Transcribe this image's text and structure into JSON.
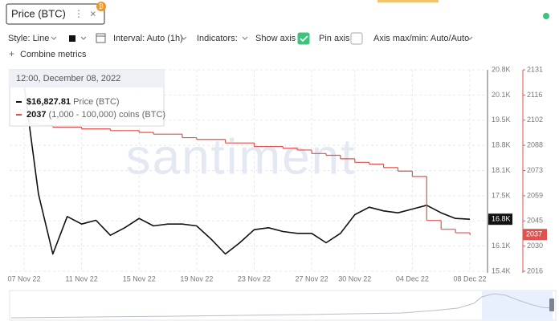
{
  "tab": {
    "title": "Price (BTC)",
    "menu": "⋮",
    "close": "×",
    "badge": "₿"
  },
  "toolbar": {
    "style": "Style: Line",
    "interval": "Interval: Auto (1h)",
    "indicators": "Indicators:",
    "show_axis": "Show axis",
    "show_axis_checked": true,
    "pin_axis": "Pin axis",
    "pin_axis_checked": false,
    "axis_range": "Axis max/min: Auto/Auto",
    "combine": "Combine metrics"
  },
  "chart_data": {
    "type": "line",
    "watermark": "santiment",
    "grid": true,
    "x": [
      "07 Nov 22",
      "08 Nov 22",
      "09 Nov 22",
      "10 Nov 22",
      "11 Nov 22",
      "12 Nov 22",
      "13 Nov 22",
      "14 Nov 22",
      "15 Nov 22",
      "16 Nov 22",
      "17 Nov 22",
      "18 Nov 22",
      "19 Nov 22",
      "20 Nov 22",
      "21 Nov 22",
      "22 Nov 22",
      "23 Nov 22",
      "24 Nov 22",
      "25 Nov 22",
      "26 Nov 22",
      "27 Nov 22",
      "28 Nov 22",
      "29 Nov 22",
      "30 Nov 22",
      "01 Dec 22",
      "02 Dec 22",
      "03 Dec 22",
      "04 Dec 22",
      "05 Dec 22",
      "06 Dec 22",
      "07 Dec 22",
      "08 Dec 22"
    ],
    "xticks": [
      "07 Nov 22",
      "11 Nov 22",
      "15 Nov 22",
      "19 Nov 22",
      "23 Nov 22",
      "27 Nov 22",
      "30 Nov 22",
      "04 Dec 22",
      "08 Dec 22"
    ],
    "series": [
      {
        "name": "Price (BTC)",
        "color": "#111111",
        "last_label": "16.8K",
        "values": [
          20400,
          17500,
          15900,
          16900,
          16700,
          16800,
          16400,
          16600,
          16850,
          16650,
          16700,
          16700,
          16650,
          16300,
          15900,
          16200,
          16550,
          16600,
          16500,
          16450,
          16450,
          16200,
          16450,
          16950,
          17150,
          17050,
          17000,
          17100,
          17200,
          17000,
          16850,
          16827.81
        ]
      },
      {
        "name": "(1,000 - 100,000) coins (BTC)",
        "color": "#e0524f",
        "axis": "y2",
        "step": true,
        "values": [
          2100,
          2099,
          2098,
          2098,
          2097,
          2097,
          2096,
          2096,
          2095,
          2094,
          2094,
          2092,
          2091,
          2091,
          2089,
          2089,
          2087,
          2087,
          2086,
          2085,
          2083,
          2082,
          2080,
          2078,
          2077,
          2075,
          2073,
          2070,
          2045,
          2040,
          2038,
          2037
        ]
      }
    ],
    "ylim": [
      15440,
      20816
    ],
    "yticks": [
      {
        "value": 15440,
        "label": "15.4K"
      },
      {
        "value": 16112,
        "label": "16.1K"
      },
      {
        "value": 16784,
        "label": "16.8K"
      },
      {
        "value": 17456,
        "label": "17.5K"
      },
      {
        "value": 18128,
        "label": "18.1K"
      },
      {
        "value": 18800,
        "label": "18.8K"
      },
      {
        "value": 19472,
        "label": "19.5K"
      },
      {
        "value": 20144,
        "label": "20.1K"
      },
      {
        "value": 20816,
        "label": "20.8K"
      }
    ],
    "y2lim": [
      2016.15,
      2130.55
    ],
    "y2ticks": [
      {
        "value": 2016.15,
        "label": "2016"
      },
      {
        "value": 2030.45,
        "label": "2030"
      },
      {
        "value": 2044.75,
        "label": "2045"
      },
      {
        "value": 2059.05,
        "label": "2059"
      },
      {
        "value": 2073.35,
        "label": "2073"
      },
      {
        "value": 2087.65,
        "label": "2088"
      },
      {
        "value": 2101.95,
        "label": "2102"
      },
      {
        "value": 2116.25,
        "label": "2116"
      },
      {
        "value": 2130.55,
        "label": "2131"
      }
    ],
    "tooltip": {
      "title": "12:00, December 08, 2022",
      "items": [
        {
          "value": "$16,827.81"
        }
      ]
    }
  }
}
